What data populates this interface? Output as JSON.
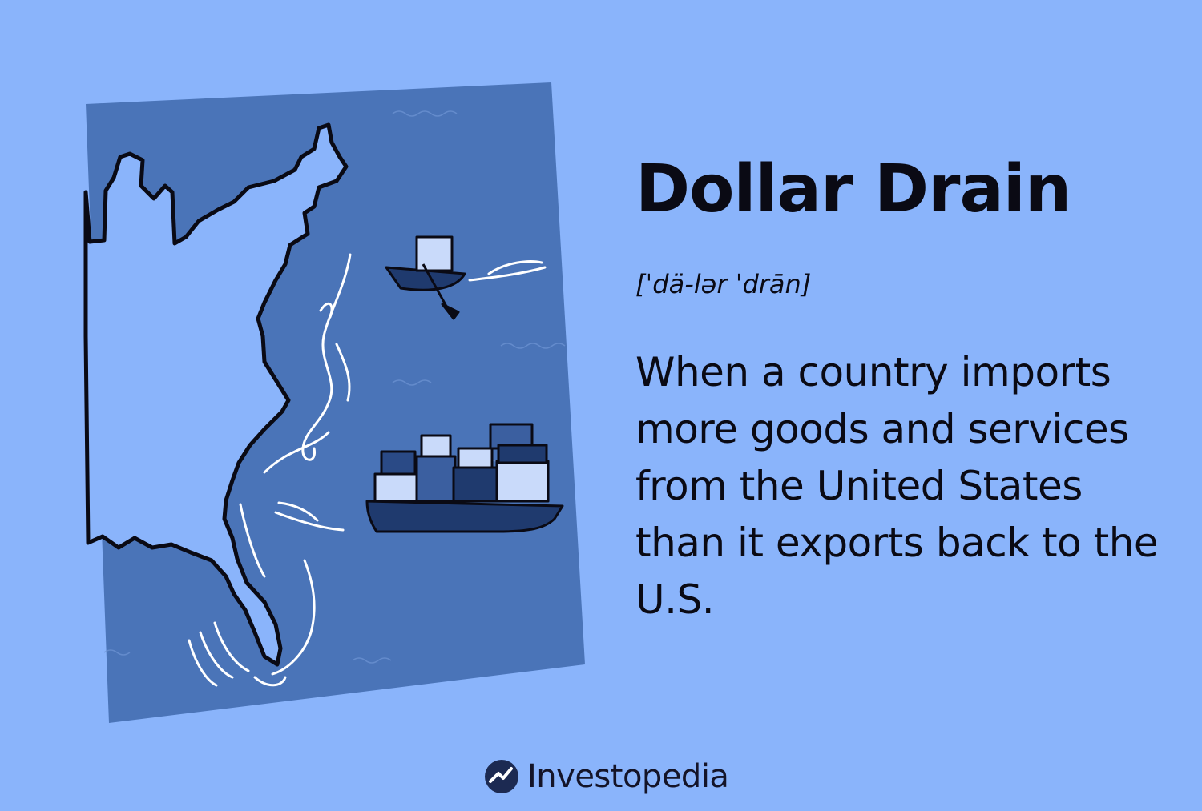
{
  "card": {
    "title": "Dollar Drain",
    "pronunciation": "[ˈdä-lər ˈdrān]",
    "definition": "When a country imports more goods and services from the United States than it exports back to the U.S."
  },
  "brand": {
    "name": "Investopedia",
    "icon": "investopedia-logo-icon"
  },
  "illustration": {
    "subject": "east-coast-map-with-ships",
    "colors": {
      "background": "#8ab4fb",
      "ocean": "#4a74b8",
      "land": "#8ab4fb",
      "hull": "#1f3a6e"
    }
  }
}
